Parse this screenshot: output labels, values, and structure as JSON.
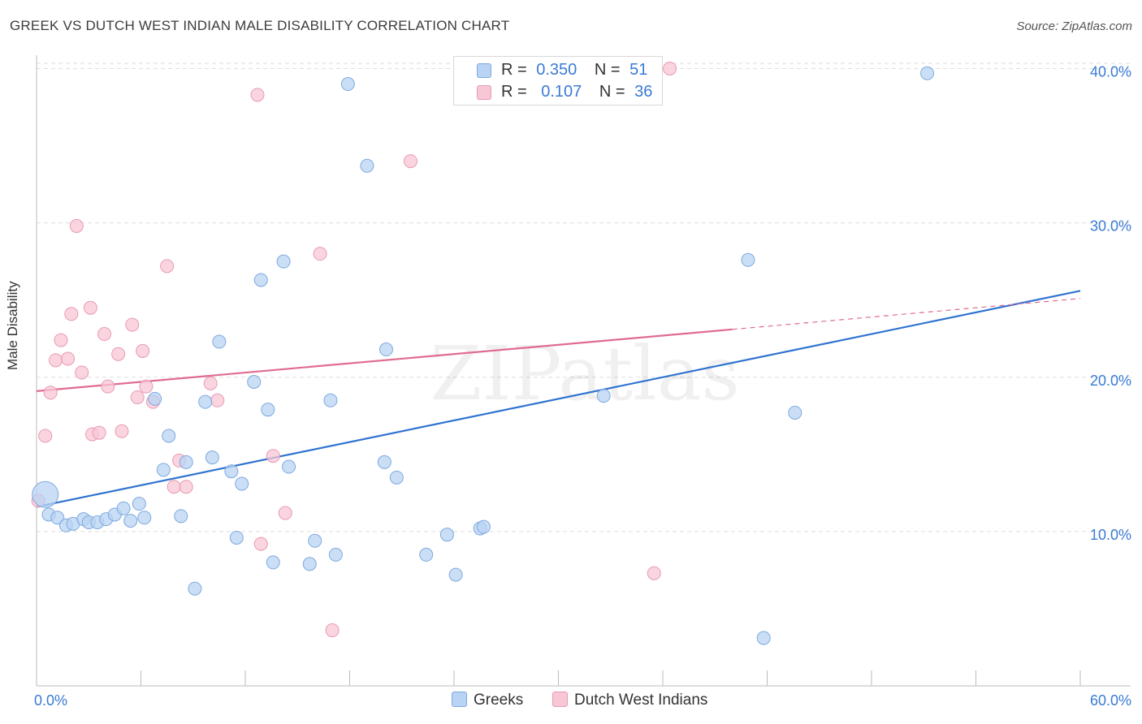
{
  "title": "GREEK VS DUTCH WEST INDIAN MALE DISABILITY CORRELATION CHART",
  "source": "Source: ZipAtlas.com",
  "watermark": "ZIPatlas",
  "legend_top": {
    "row1": {
      "r_label": "R =",
      "r_value": "0.350",
      "n_label": "N =",
      "n_value": "51"
    },
    "row2": {
      "r_label": "R =",
      "r_value": "0.107",
      "n_label": "N =",
      "n_value": "36"
    }
  },
  "legend_bottom": {
    "series1": "Greeks",
    "series2": "Dutch West Indians"
  },
  "colors": {
    "blue_fill": "#b8d3f3",
    "blue_stroke": "#7fa9df",
    "blue_line": "#2f73cf",
    "pink_fill": "#f8c7d5",
    "pink_stroke": "#e89ab2",
    "pink_line": "#e06b90",
    "tick_text": "#3a7bd5",
    "grid": "#dddddd"
  },
  "chart_data": {
    "type": "scatter",
    "title": "GREEK VS DUTCH WEST INDIAN MALE DISABILITY CORRELATION CHART",
    "xlabel": "",
    "ylabel": "Male Disability",
    "xlim": [
      0,
      60
    ],
    "ylim": [
      0,
      40.5
    ],
    "x_tick_labels": [
      "0.0%",
      "60.0%"
    ],
    "y_ticks": [
      10,
      20,
      30,
      40
    ],
    "y_tick_labels": [
      "10.0%",
      "20.0%",
      "30.0%",
      "40.0%"
    ],
    "grid": "horizontal dashed",
    "legend_position": "top-center and bottom",
    "series": [
      {
        "name": "Greeks",
        "R": 0.35,
        "N": 51,
        "trend": {
          "x0": 0,
          "y0": 11.6,
          "x1": 60,
          "y1": 25.6
        },
        "points": [
          [
            0.5,
            12.4,
            "large"
          ],
          [
            0.7,
            11.1
          ],
          [
            1.2,
            10.9
          ],
          [
            1.7,
            10.4
          ],
          [
            2.1,
            10.5
          ],
          [
            2.7,
            10.8
          ],
          [
            3.0,
            10.6
          ],
          [
            3.5,
            10.6
          ],
          [
            4.0,
            10.8
          ],
          [
            4.5,
            11.1
          ],
          [
            5.0,
            11.5
          ],
          [
            5.4,
            10.7
          ],
          [
            5.9,
            11.8
          ],
          [
            6.2,
            10.9
          ],
          [
            6.8,
            18.6
          ],
          [
            7.3,
            14.0
          ],
          [
            7.6,
            16.2
          ],
          [
            8.3,
            11.0
          ],
          [
            8.6,
            14.5
          ],
          [
            9.1,
            6.3
          ],
          [
            9.7,
            18.4
          ],
          [
            10.1,
            14.8
          ],
          [
            10.5,
            22.3
          ],
          [
            11.2,
            13.9
          ],
          [
            11.5,
            9.6
          ],
          [
            11.8,
            13.1
          ],
          [
            12.5,
            19.7
          ],
          [
            12.9,
            26.3
          ],
          [
            13.3,
            17.9
          ],
          [
            13.6,
            8.0
          ],
          [
            14.2,
            27.5
          ],
          [
            14.5,
            14.2
          ],
          [
            15.7,
            7.9
          ],
          [
            16.0,
            9.4
          ],
          [
            16.9,
            18.5
          ],
          [
            17.2,
            8.5
          ],
          [
            17.9,
            39.0
          ],
          [
            19.0,
            33.7
          ],
          [
            20.0,
            14.5
          ],
          [
            20.1,
            21.8
          ],
          [
            20.7,
            13.5
          ],
          [
            22.4,
            8.5
          ],
          [
            23.6,
            9.8
          ],
          [
            24.1,
            7.2
          ],
          [
            25.5,
            10.2
          ],
          [
            25.7,
            10.3
          ],
          [
            32.6,
            18.8
          ],
          [
            40.9,
            27.6
          ],
          [
            41.8,
            3.1
          ],
          [
            43.6,
            17.7
          ],
          [
            51.2,
            39.7
          ]
        ]
      },
      {
        "name": "Dutch West Indians",
        "R": 0.107,
        "N": 36,
        "trend": {
          "x0": 0,
          "y0": 19.1,
          "x1": 40,
          "y1": 23.1,
          "dashed_to_x": 60,
          "dashed_to_y": 25.1
        },
        "points": [
          [
            0.1,
            12.0
          ],
          [
            0.5,
            16.2
          ],
          [
            0.8,
            19.0
          ],
          [
            1.1,
            21.1
          ],
          [
            1.4,
            22.4
          ],
          [
            1.8,
            21.2
          ],
          [
            2.0,
            24.1
          ],
          [
            2.3,
            29.8
          ],
          [
            2.6,
            20.3
          ],
          [
            3.1,
            24.5
          ],
          [
            3.2,
            16.3
          ],
          [
            3.6,
            16.4
          ],
          [
            3.9,
            22.8
          ],
          [
            4.1,
            19.4
          ],
          [
            4.7,
            21.5
          ],
          [
            4.9,
            16.5
          ],
          [
            5.5,
            23.4
          ],
          [
            5.8,
            18.7
          ],
          [
            6.1,
            21.7
          ],
          [
            6.3,
            19.4
          ],
          [
            6.7,
            18.4
          ],
          [
            7.5,
            27.2
          ],
          [
            7.9,
            12.9
          ],
          [
            8.2,
            14.6
          ],
          [
            8.6,
            12.9
          ],
          [
            10.0,
            19.6
          ],
          [
            10.4,
            18.5
          ],
          [
            12.7,
            38.3
          ],
          [
            12.9,
            9.2
          ],
          [
            13.6,
            14.9
          ],
          [
            14.3,
            11.2
          ],
          [
            16.3,
            28.0
          ],
          [
            17.0,
            3.6
          ],
          [
            21.5,
            34.0
          ],
          [
            35.5,
            7.3
          ],
          [
            36.4,
            40.0
          ]
        ]
      }
    ]
  }
}
